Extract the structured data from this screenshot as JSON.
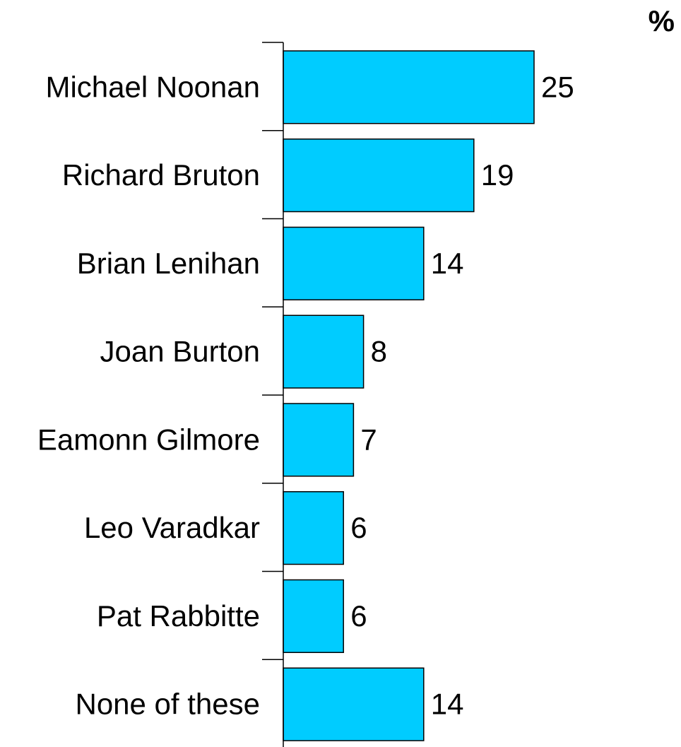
{
  "chart_data": {
    "type": "bar",
    "orientation": "horizontal",
    "unit_label": "%",
    "categories": [
      "Michael Noonan",
      "Richard Bruton",
      "Brian Lenihan",
      "Joan Burton",
      "Eamonn Gilmore",
      "Leo Varadkar",
      "Pat Rabbitte",
      "None of these"
    ],
    "values": [
      25,
      19,
      14,
      8,
      7,
      6,
      6,
      14
    ],
    "bar_color": "#00ccff",
    "grid": false
  }
}
